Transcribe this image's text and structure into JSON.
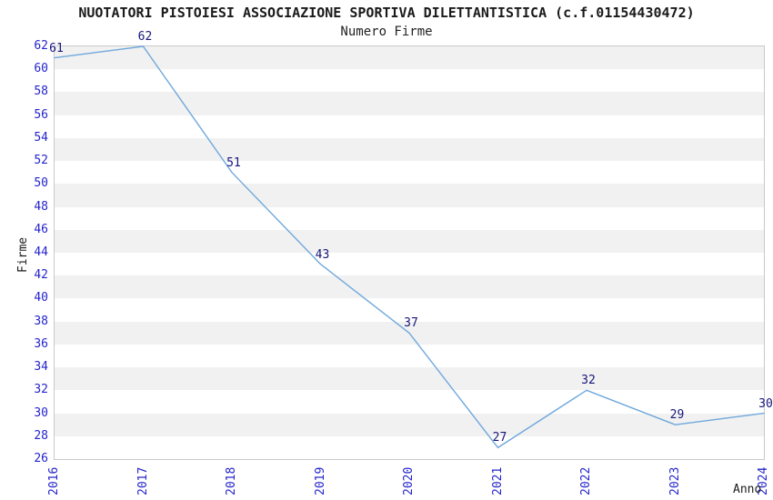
{
  "header": {
    "title": "NUOTATORI PISTOIESI ASSOCIAZIONE SPORTIVA DILETTANTISTICA (c.f.01154430472)",
    "subtitle": "Numero Firme"
  },
  "chart_data": {
    "type": "line",
    "title": "NUOTATORI PISTOIESI ASSOCIAZIONE SPORTIVA DILETTANTISTICA (c.f.01154430472)",
    "subtitle": "Numero Firme",
    "xlabel": "Anno",
    "ylabel": "Firme",
    "categories": [
      "2016",
      "2017",
      "2018",
      "2019",
      "2020",
      "2021",
      "2022",
      "2023",
      "2024"
    ],
    "series": [
      {
        "name": "Numero Firme",
        "values": [
          61,
          62,
          51,
          43,
          37,
          27,
          32,
          29,
          30
        ]
      }
    ],
    "ylim": [
      26,
      62
    ],
    "ytick_step": 2,
    "grid": "alternating-horizontal-bands",
    "legend": "none",
    "data_labels_visible": true,
    "colors": {
      "line": "#6fa8dc",
      "axis_tick_label": "#2424cc",
      "data_label": "#16167a",
      "band_gray": "#f1f1f1",
      "band_white": "#ffffff",
      "plot_border": "#c9c9c9",
      "text": "#1a1a1a",
      "background": "#ffffff"
    }
  }
}
